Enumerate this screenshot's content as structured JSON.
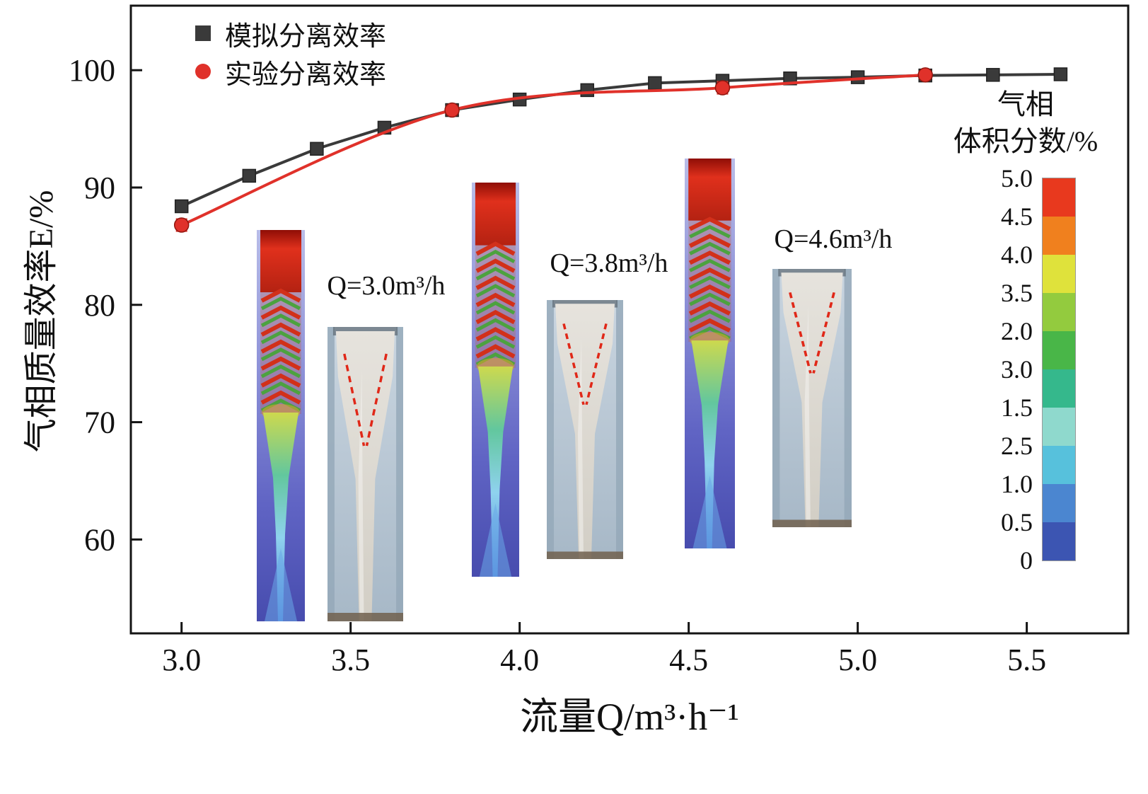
{
  "figure": {
    "background": "#ffffff",
    "frame_color": "#141414"
  },
  "chart_data": {
    "type": "line",
    "title": "",
    "xlabel": "流量Q/m³·h⁻¹",
    "ylabel": "气相质量效率E/%",
    "xlim": [
      2.85,
      5.8
    ],
    "ylim": [
      52,
      105.5
    ],
    "x_ticks": [
      "3.0",
      "3.5",
      "4.0",
      "4.5",
      "5.0",
      "5.5"
    ],
    "y_ticks": [
      60,
      70,
      80,
      90,
      100
    ],
    "grid": false,
    "legend_position": "top-left",
    "series": [
      {
        "name": "模拟分离效率",
        "color": "#3a3a3a",
        "marker": "square",
        "x": [
          3.0,
          3.2,
          3.4,
          3.6,
          3.8,
          4.0,
          4.2,
          4.4,
          4.6,
          4.8,
          5.0,
          5.2,
          5.4,
          5.6
        ],
        "y": [
          88.4,
          91.0,
          93.3,
          95.1,
          96.6,
          97.5,
          98.3,
          98.9,
          99.1,
          99.3,
          99.4,
          99.55,
          99.6,
          99.65
        ]
      },
      {
        "name": "实验分离效率",
        "color": "#e0312a",
        "marker": "circle",
        "smooth": true,
        "x": [
          3.0,
          3.8,
          4.6,
          5.2
        ],
        "y": [
          86.8,
          96.6,
          98.5,
          99.6
        ],
        "y_err": [
          0.5,
          0.4,
          0.5,
          0.25
        ]
      }
    ],
    "annotations": [
      {
        "text": "Q=3.0m³/h"
      },
      {
        "text": "Q=3.8m³/h"
      },
      {
        "text": "Q=4.6m³/h"
      }
    ],
    "colorbar": {
      "title_line1": "气相",
      "title_line2": "体积分数/%",
      "tick_labels": [
        "5.0",
        "4.5",
        "4.0",
        "3.5",
        "2.0",
        "3.0",
        "1.5",
        "2.5",
        "1.0",
        "0.5",
        "0"
      ],
      "colors": [
        "#e8391e",
        "#f0801e",
        "#dfe23b",
        "#93cb3e",
        "#49b648",
        "#35b88c",
        "#8fd9cd",
        "#57c1dc",
        "#4b86d0",
        "#3c55b2"
      ]
    }
  }
}
